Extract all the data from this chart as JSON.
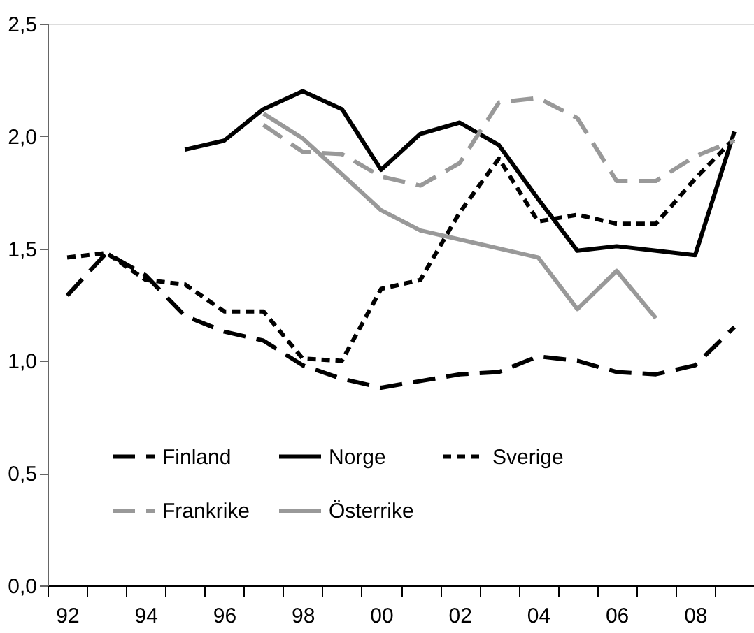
{
  "chart_data": {
    "type": "line",
    "x": [
      1992,
      1993,
      1994,
      1995,
      1996,
      1997,
      1998,
      1999,
      2000,
      2001,
      2002,
      2003,
      2004,
      2005,
      2006,
      2007,
      2008,
      2009
    ],
    "series": [
      {
        "name": "Finland",
        "color": "#000000",
        "line_style": "dashed",
        "values": [
          1.29,
          1.48,
          1.38,
          1.2,
          1.13,
          1.09,
          0.98,
          0.92,
          0.88,
          0.91,
          0.94,
          0.95,
          1.02,
          1.0,
          0.95,
          0.94,
          0.98,
          1.15
        ]
      },
      {
        "name": "Norge",
        "color": "#000000",
        "line_style": "solid",
        "values": [
          null,
          null,
          null,
          1.94,
          1.98,
          2.12,
          2.2,
          2.12,
          1.85,
          2.01,
          2.06,
          1.96,
          1.72,
          1.49,
          1.51,
          1.49,
          1.47,
          2.02
        ]
      },
      {
        "name": "Sverige",
        "color": "#000000",
        "line_style": "dotted",
        "values": [
          1.46,
          1.48,
          1.36,
          1.34,
          1.22,
          1.22,
          1.01,
          1.0,
          1.32,
          1.36,
          1.66,
          1.9,
          1.62,
          1.65,
          1.61,
          1.61,
          1.81,
          1.99
        ]
      },
      {
        "name": "Frankrike",
        "color": "#999999",
        "line_style": "dashed",
        "values": [
          null,
          null,
          null,
          null,
          null,
          2.05,
          1.93,
          1.92,
          1.82,
          1.78,
          1.88,
          2.15,
          2.17,
          2.08,
          1.8,
          1.8,
          1.91,
          1.98
        ]
      },
      {
        "name": "Österrike",
        "color": "#999999",
        "line_style": "solid",
        "values": [
          null,
          null,
          null,
          null,
          null,
          2.1,
          1.99,
          1.83,
          1.67,
          1.58,
          1.54,
          1.5,
          1.46,
          1.23,
          1.4,
          1.19,
          null,
          null
        ]
      }
    ],
    "xlim": [
      1991.5,
      2009.5
    ],
    "xticks": [
      {
        "value": 1991.5,
        "label": null
      },
      {
        "value": 1992,
        "label": "92"
      },
      {
        "value": 1992.5,
        "label": null
      },
      {
        "value": 1993.5,
        "label": null
      },
      {
        "value": 1994,
        "label": "94"
      },
      {
        "value": 1994.5,
        "label": null
      },
      {
        "value": 1995.5,
        "label": null
      },
      {
        "value": 1996,
        "label": "96"
      },
      {
        "value": 1996.5,
        "label": null
      },
      {
        "value": 1997.5,
        "label": null
      },
      {
        "value": 1998,
        "label": "98"
      },
      {
        "value": 1998.5,
        "label": null
      },
      {
        "value": 1999.5,
        "label": null
      },
      {
        "value": 2000,
        "label": "00"
      },
      {
        "value": 2000.5,
        "label": null
      },
      {
        "value": 2001.5,
        "label": null
      },
      {
        "value": 2002,
        "label": "02"
      },
      {
        "value": 2002.5,
        "label": null
      },
      {
        "value": 2003.5,
        "label": null
      },
      {
        "value": 2004,
        "label": "04"
      },
      {
        "value": 2004.5,
        "label": null
      },
      {
        "value": 2005.5,
        "label": null
      },
      {
        "value": 2006,
        "label": "06"
      },
      {
        "value": 2006.5,
        "label": null
      },
      {
        "value": 2007.5,
        "label": null
      },
      {
        "value": 2008,
        "label": "08"
      },
      {
        "value": 2008.5,
        "label": null
      }
    ],
    "ylim": [
      0,
      2.5
    ],
    "yticks": [
      {
        "value": 0,
        "label": "0,0"
      },
      {
        "value": 0.5,
        "label": "0,5"
      },
      {
        "value": 1.0,
        "label": "1,0"
      },
      {
        "value": 1.5,
        "label": "1,5"
      },
      {
        "value": 2.0,
        "label": "2,0"
      },
      {
        "value": 2.5,
        "label": "2,5"
      }
    ],
    "grid": false,
    "legend": "bottom left",
    "marker": "none"
  }
}
